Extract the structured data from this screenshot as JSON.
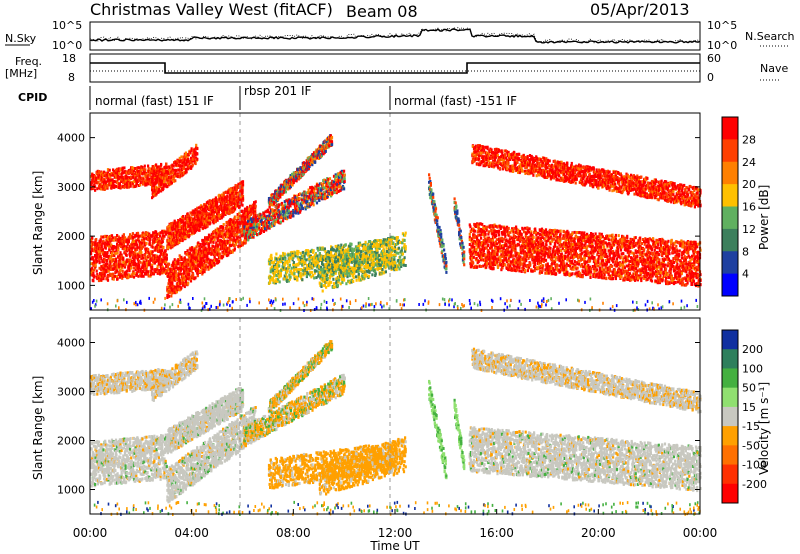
{
  "header": {
    "title": "Christmas Valley West (fitACF)",
    "beam": "Beam 08",
    "date": "05/Apr/2013"
  },
  "top_panels": {
    "nsky": {
      "label": "N.Sky",
      "yticks_left": [
        "10^5",
        "10^0"
      ]
    },
    "nsearch": {
      "label": "N.Search",
      "yticks_right": [
        "10^5",
        "10^0"
      ]
    },
    "freq": {
      "label_line1": "Freq.",
      "label_line2": "[MHz]",
      "yticks_left": [
        "18",
        "8"
      ]
    },
    "nave": {
      "label": "Nave",
      "yticks_right": [
        "60",
        "0"
      ]
    },
    "cpid": {
      "label": "CPID",
      "segments": [
        "normal (fast) 151 IF",
        "rbsp 201 IF",
        "normal (fast) -151 IF"
      ]
    }
  },
  "chart_data": [
    {
      "type": "heatmap",
      "name": "power-panel",
      "ylabel": "Slant Range [km]",
      "yticks": [
        "1000",
        "2000",
        "3000",
        "4000"
      ],
      "ylim": [
        500,
        4500
      ],
      "colorbar_label": "Power [dB]",
      "colorbar_ticks": [
        "28",
        "24",
        "20",
        "16",
        "12",
        "8",
        "4"
      ],
      "colorbar_colors": [
        "#ff0000",
        "#ff4000",
        "#ff8000",
        "#ffc000",
        "#60b060",
        "#3c7f5c",
        "#1f40a0",
        "#0000ff"
      ]
    },
    {
      "type": "heatmap",
      "name": "velocity-panel",
      "ylabel": "Slant Range [km]",
      "yticks": [
        "1000",
        "2000",
        "3000",
        "4000"
      ],
      "ylim": [
        500,
        4500
      ],
      "colorbar_label": "Velocity [m s⁻¹]",
      "colorbar_ticks": [
        "200",
        "100",
        "50",
        "15",
        "-15",
        "-50",
        "-100",
        "-200"
      ],
      "colorbar_colors": [
        "#1030a0",
        "#2e7f5c",
        "#44b040",
        "#90e070",
        "#c8c8c0",
        "#ffa000",
        "#ff7000",
        "#ff3000",
        "#ff0000"
      ]
    }
  ],
  "xaxis": {
    "ticks": [
      "00:00",
      "04:00",
      "08:00",
      "12:00",
      "16:00",
      "20:00",
      "00:00"
    ],
    "label": "Time UT"
  }
}
